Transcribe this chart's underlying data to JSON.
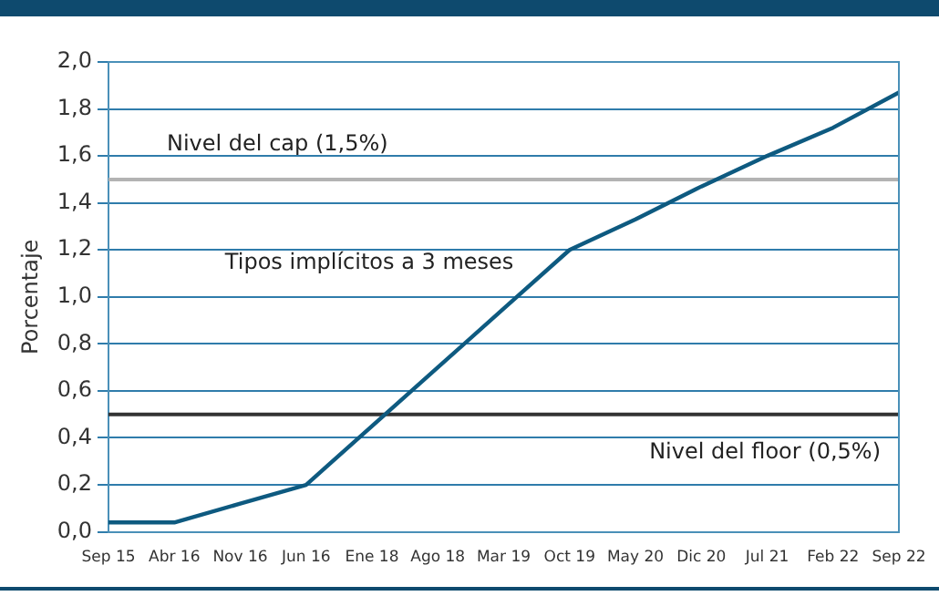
{
  "chart_data": {
    "type": "line",
    "ylabel": "Porcentaje",
    "categories": [
      "Sep 15",
      "Abr 16",
      "Nov 16",
      "Jun 16",
      "Ene 18",
      "Ago 18",
      "Mar 19",
      "Oct 19",
      "May 20",
      "Dic 20",
      "Jul 21",
      "Feb 22",
      "Sep 22"
    ],
    "series": [
      {
        "color": "#0e5a80",
        "values": [
          0.04,
          0.04,
          0.12,
          0.2,
          0.45,
          0.7,
          0.95,
          1.2,
          1.33,
          1.47,
          1.6,
          1.72,
          1.87
        ]
      }
    ],
    "ylim": [
      0,
      2
    ],
    "yticks": [
      {
        "value": 0,
        "label": "0,0"
      },
      {
        "value": 0.2,
        "label": "0,2"
      },
      {
        "value": 0.4,
        "label": "0,4"
      },
      {
        "value": 0.6,
        "label": "0,6"
      },
      {
        "value": 0.8,
        "label": "0,8"
      },
      {
        "value": 1,
        "label": "1,0"
      },
      {
        "value": 1.2,
        "label": "1,2"
      },
      {
        "value": 1.4,
        "label": "1,4"
      },
      {
        "value": 1.6,
        "label": "1,6"
      },
      {
        "value": 1.8,
        "label": "1,8"
      },
      {
        "value": 2,
        "label": "2,0"
      }
    ],
    "grid": "y",
    "legend": false,
    "marker": "none",
    "line_style": "solid",
    "ref_lines": [
      {
        "axis": "y",
        "value": 1.5,
        "label": "Nivel del cap (1,5%)",
        "color": "#b3b3b3"
      },
      {
        "axis": "y",
        "value": 0.5,
        "label": "Nivel del floor (0,5%)",
        "color": "#333333"
      }
    ],
    "annotations": [
      "Tipos implícitos a 3 meses"
    ]
  }
}
